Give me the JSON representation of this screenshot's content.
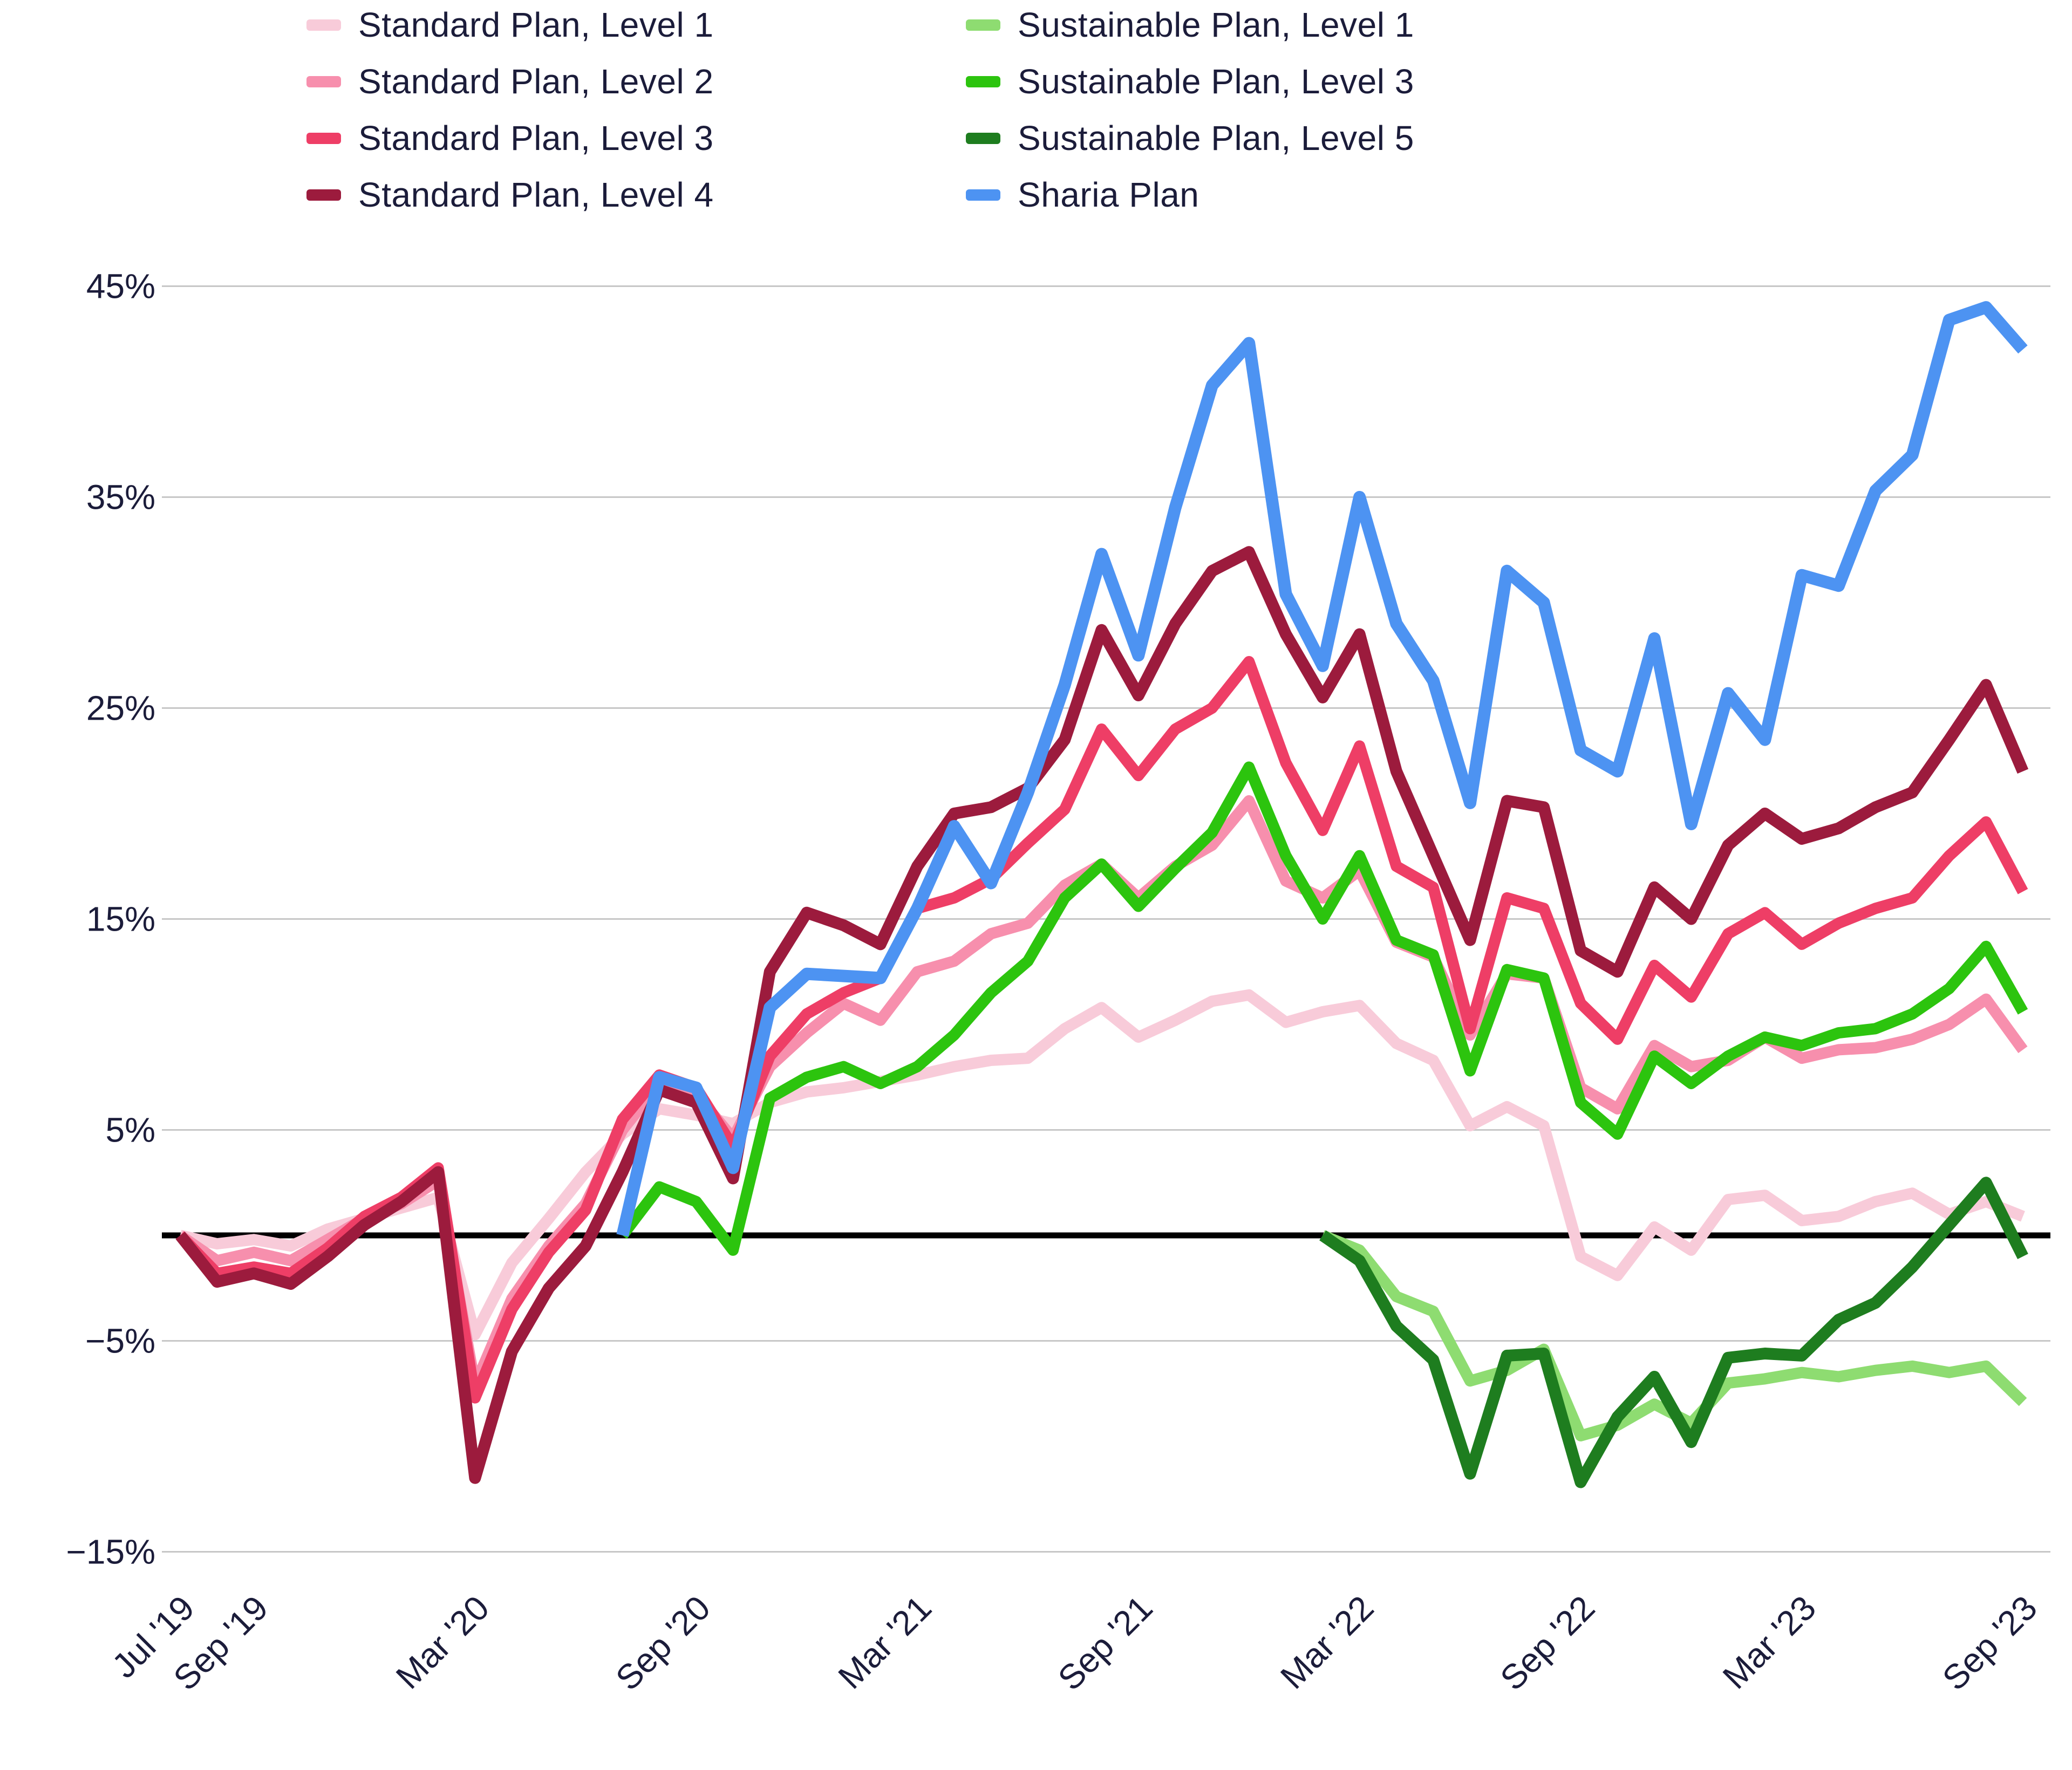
{
  "legend": {
    "columns": [
      [
        0,
        1,
        2,
        3
      ],
      [
        4,
        5,
        6,
        7
      ]
    ]
  },
  "chart_data": {
    "type": "line",
    "title": "",
    "xlabel": "",
    "ylabel": "",
    "grid": "horizontal",
    "legend_position": "top",
    "background": "#ffffff",
    "text_color": "#1B1C3A",
    "grid_color": "#C7C7C7",
    "zero_line_color": "#000000",
    "ylim": [
      -17.5,
      47
    ],
    "months": [
      "Jul '19",
      "Aug '19",
      "Sep '19",
      "Oct '19",
      "Nov '19",
      "Dec '19",
      "Jan '20",
      "Feb '20",
      "Mar '20",
      "Apr '20",
      "May '20",
      "Jun '20",
      "Jul '20",
      "Aug '20",
      "Sep '20",
      "Oct '20",
      "Nov '20",
      "Dec '20",
      "Jan '21",
      "Feb '21",
      "Mar '21",
      "Apr '21",
      "May '21",
      "Jun '21",
      "Jul '21",
      "Aug '21",
      "Sep '21",
      "Oct '21",
      "Nov '21",
      "Dec '21",
      "Jan '22",
      "Feb '22",
      "Mar '22",
      "Apr '22",
      "May '22",
      "Jun '22",
      "Jul '22",
      "Aug '22",
      "Sep '22",
      "Oct '22",
      "Nov '22",
      "Dec '22",
      "Jan '23",
      "Feb '23",
      "Mar '23",
      "Apr '23",
      "May '23",
      "Jun '23",
      "Jul '23",
      "Aug '23",
      "Sep '23"
    ],
    "y_axis": {
      "ticks": [
        {
          "value": 45,
          "label": "45%"
        },
        {
          "value": 35,
          "label": "35%"
        },
        {
          "value": 25,
          "label": "25%"
        },
        {
          "value": 15,
          "label": "15%"
        },
        {
          "value": 5,
          "label": "5%"
        },
        {
          "value": -5,
          "label": "−5%"
        },
        {
          "value": -15,
          "label": "−15%"
        }
      ],
      "zero_line": 0
    },
    "x_axis": {
      "ticks": [
        {
          "month_index": 0,
          "label": "Jul '19"
        },
        {
          "month_index": 2,
          "label": "Sep '19"
        },
        {
          "month_index": 8,
          "label": "Mar '20"
        },
        {
          "month_index": 14,
          "label": "Sep '20"
        },
        {
          "month_index": 20,
          "label": "Mar '21"
        },
        {
          "month_index": 26,
          "label": "Sep '21"
        },
        {
          "month_index": 32,
          "label": "Mar '22"
        },
        {
          "month_index": 38,
          "label": "Sep '22"
        },
        {
          "month_index": 44,
          "label": "Mar '23"
        },
        {
          "month_index": 50,
          "label": "Sep '23"
        }
      ]
    },
    "series": [
      {
        "name": "Standard Plan, Level 1",
        "color": "#F8CBD9",
        "stroke_width": 21,
        "values": [
          0,
          -0.4,
          -0.2,
          -0.5,
          0.3,
          0.8,
          1.3,
          1.8,
          -4.7,
          -1.3,
          0.8,
          3.0,
          4.8,
          6.0,
          5.7,
          5.3,
          6.3,
          6.8,
          7.0,
          7.3,
          7.6,
          8.0,
          8.3,
          8.4,
          9.8,
          10.8,
          9.4,
          10.2,
          11.1,
          11.4,
          10.1,
          10.6,
          10.9,
          9.1,
          8.3,
          5.2,
          6.1,
          5.2,
          -1.0,
          -1.9,
          0.4,
          -0.7,
          1.7,
          1.9,
          0.7,
          0.9,
          1.6,
          2.0,
          1.0,
          1.6,
          0.9
        ]
      },
      {
        "name": "Standard Plan, Level 2",
        "color": "#F78FAD",
        "stroke_width": 21,
        "values": [
          0,
          -1.2,
          -0.8,
          -1.2,
          -0.2,
          0.8,
          1.5,
          2.6,
          -7.1,
          -3.0,
          -0.5,
          1.5,
          5.0,
          7.2,
          6.7,
          4.6,
          8.0,
          9.6,
          11.0,
          10.2,
          12.5,
          13.0,
          14.3,
          14.8,
          16.6,
          17.6,
          16.0,
          17.5,
          18.5,
          20.6,
          16.8,
          16.0,
          17.3,
          13.9,
          13.2,
          9.5,
          12.4,
          12.2,
          7.0,
          6.0,
          9.0,
          8.0,
          8.3,
          9.4,
          8.4,
          8.8,
          8.9,
          9.3,
          10.0,
          11.2,
          8.8
        ]
      },
      {
        "name": "Standard Plan, Level 3",
        "color": "#EE3E66",
        "stroke_width": 21,
        "values": [
          0,
          -1.8,
          -1.5,
          -1.8,
          -0.6,
          0.9,
          1.8,
          3.2,
          -7.7,
          -3.5,
          -0.8,
          1.2,
          5.5,
          7.6,
          7.0,
          4.2,
          8.5,
          10.5,
          11.5,
          12.2,
          15.5,
          16.0,
          16.9,
          18.6,
          20.2,
          24.0,
          21.8,
          24.0,
          25.0,
          27.2,
          22.4,
          19.2,
          23.2,
          17.5,
          16.5,
          9.8,
          16.0,
          15.5,
          11.0,
          9.3,
          12.8,
          11.3,
          14.3,
          15.3,
          13.8,
          14.8,
          15.5,
          16.0,
          18.0,
          19.6,
          16.3
        ]
      },
      {
        "name": "Standard Plan, Level 4",
        "color": "#9C1B3D",
        "stroke_width": 22,
        "values": [
          0,
          -2.2,
          -1.8,
          -2.3,
          -1.0,
          0.5,
          1.6,
          3.0,
          -11.5,
          -5.5,
          -2.5,
          -0.5,
          3.0,
          6.9,
          6.3,
          2.7,
          12.5,
          15.3,
          14.7,
          13.8,
          17.5,
          20.0,
          20.3,
          21.2,
          23.5,
          28.7,
          25.6,
          29.0,
          31.5,
          32.4,
          28.5,
          25.5,
          28.5,
          22.0,
          18.0,
          14.0,
          20.6,
          20.3,
          13.5,
          12.5,
          16.5,
          15.0,
          18.5,
          20.0,
          18.8,
          19.3,
          20.3,
          21.0,
          23.5,
          26.1,
          22.0
        ]
      },
      {
        "name": "Sustainable Plan, Level 1",
        "color": "#8EDC71",
        "stroke_width": 21,
        "values": [
          null,
          null,
          null,
          null,
          null,
          null,
          null,
          null,
          null,
          null,
          null,
          null,
          null,
          null,
          null,
          null,
          null,
          null,
          null,
          null,
          null,
          null,
          null,
          null,
          null,
          null,
          null,
          null,
          null,
          null,
          null,
          0,
          -0.7,
          -2.9,
          -3.6,
          -6.9,
          -6.4,
          -5.4,
          -9.5,
          -9.0,
          -8.0,
          -8.9,
          -7.0,
          -6.8,
          -6.5,
          -6.7,
          -6.4,
          -6.2,
          -6.5,
          -6.2,
          -7.9
        ]
      },
      {
        "name": "Sustainable Plan, Level 3",
        "color": "#2CC40E",
        "stroke_width": 21,
        "values": [
          null,
          null,
          null,
          null,
          null,
          null,
          null,
          null,
          null,
          null,
          null,
          null,
          0,
          2.3,
          1.6,
          -0.7,
          6.5,
          7.5,
          8.0,
          7.2,
          8.0,
          9.5,
          11.5,
          13.0,
          16.0,
          17.6,
          15.6,
          17.4,
          19.1,
          22.2,
          18.0,
          15.0,
          18.0,
          14.0,
          13.3,
          7.8,
          12.6,
          12.2,
          6.3,
          4.8,
          8.5,
          7.2,
          8.5,
          9.4,
          9.0,
          9.6,
          9.8,
          10.5,
          11.7,
          13.7,
          10.6
        ]
      },
      {
        "name": "Sustainable Plan, Level 5",
        "color": "#1E7D1F",
        "stroke_width": 22,
        "values": [
          null,
          null,
          null,
          null,
          null,
          null,
          null,
          null,
          null,
          null,
          null,
          null,
          null,
          null,
          null,
          null,
          null,
          null,
          null,
          null,
          null,
          null,
          null,
          null,
          null,
          null,
          null,
          null,
          null,
          null,
          null,
          0,
          -1.2,
          -4.3,
          -5.9,
          -11.3,
          -5.7,
          -5.6,
          -11.7,
          -8.6,
          -6.7,
          -9.8,
          -5.8,
          -5.6,
          -5.7,
          -4.0,
          -3.2,
          -1.5,
          0.5,
          2.5,
          -1.0
        ]
      },
      {
        "name": "Sharia Plan",
        "color": "#4D93F2",
        "stroke_width": 23,
        "values": [
          null,
          null,
          null,
          null,
          null,
          null,
          null,
          null,
          null,
          null,
          null,
          null,
          0,
          7.5,
          7.0,
          3.2,
          10.8,
          12.4,
          12.3,
          12.2,
          15.5,
          19.4,
          16.7,
          21.0,
          26.1,
          32.3,
          27.5,
          34.5,
          40.3,
          42.3,
          30.4,
          27.0,
          35.0,
          29.0,
          26.3,
          20.5,
          31.5,
          30.0,
          23.0,
          22.0,
          28.3,
          19.5,
          25.7,
          23.5,
          31.3,
          30.8,
          35.3,
          37.0,
          43.4,
          44.0,
          42.0
        ]
      }
    ]
  }
}
